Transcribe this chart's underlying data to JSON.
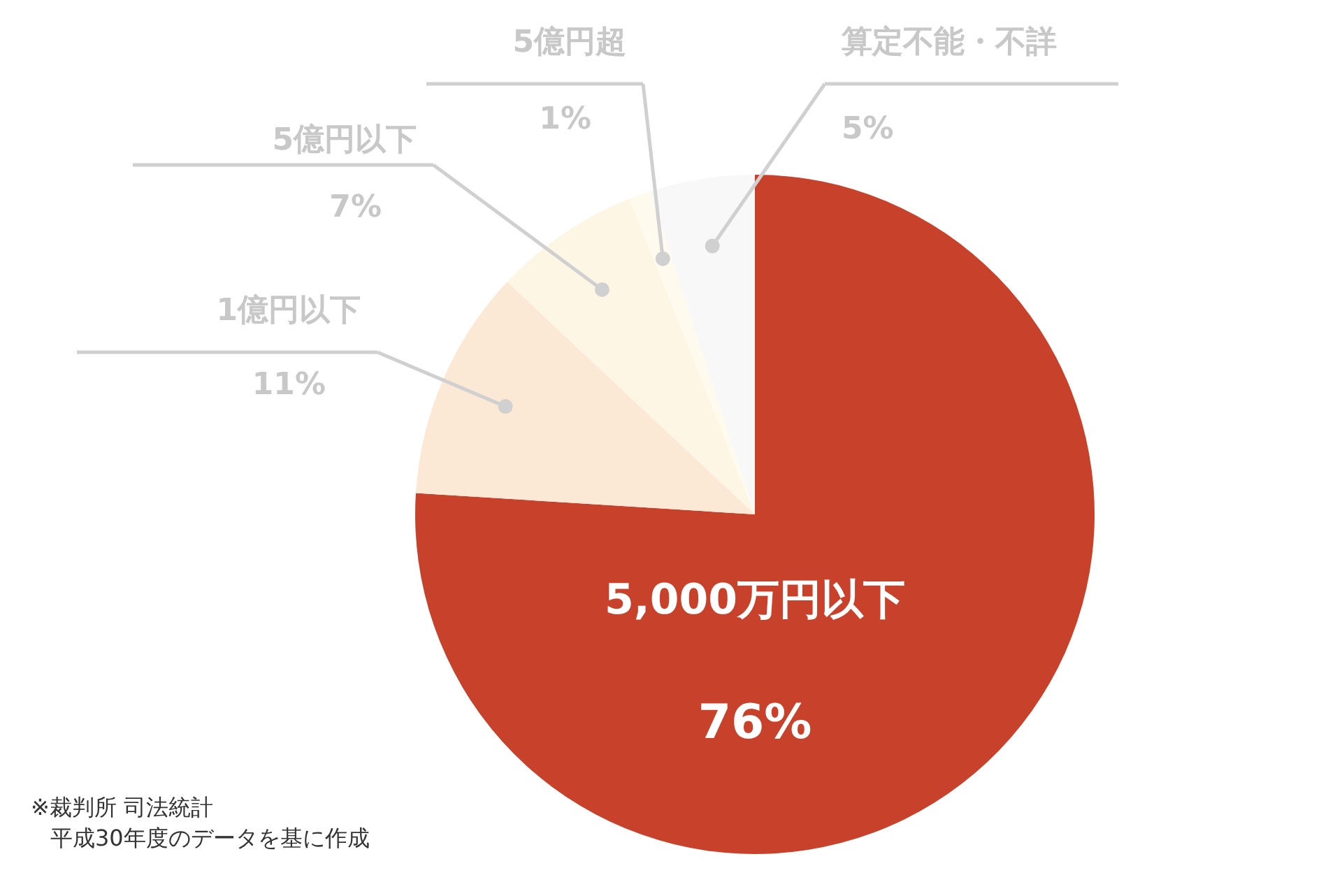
{
  "chart_data": {
    "type": "pie",
    "categories": [
      "5,000万円以下",
      "1億円以下",
      "5億円以下",
      "5億円超",
      "算定不能・不詳"
    ],
    "values": [
      76,
      11,
      7,
      1,
      5
    ],
    "value_labels": [
      "76%",
      "11%",
      "7%",
      "1%",
      "5%"
    ],
    "colors": [
      "#c8412a",
      "#fbe9d6",
      "#fef6e4",
      "#fefbee",
      "#f8f8f8"
    ],
    "legend": false,
    "annotations": [
      "※裁判所 司法統計",
      "平成30年度のデータを基に作成"
    ]
  }
}
